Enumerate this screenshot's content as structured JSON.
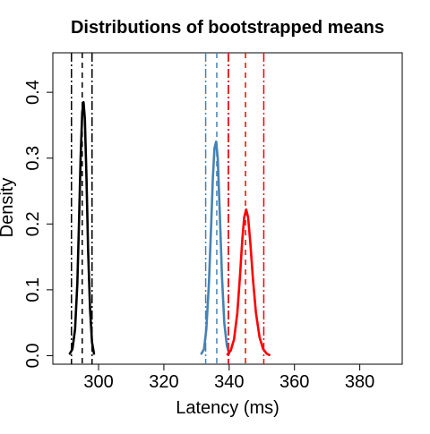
{
  "chart_data": {
    "type": "line",
    "title": "Distributions of bootstrapped means",
    "xlabel": "Latency (ms)",
    "ylabel": "Density",
    "xlim": [
      286,
      393
    ],
    "ylim": [
      -0.013,
      0.46
    ],
    "x_ticks": [
      300,
      320,
      340,
      360,
      380
    ],
    "y_ticks": [
      0.0,
      0.1,
      0.2,
      0.3,
      0.4
    ],
    "x_tick_labels": [
      "300",
      "320",
      "340",
      "360",
      "380"
    ],
    "y_tick_labels": [
      "0.0",
      "0.1",
      "0.2",
      "0.3",
      "0.4"
    ],
    "grid": false,
    "legend": "none",
    "series": [
      {
        "color": "#000000",
        "x": [
          291.2,
          292.0,
          292.8,
          293.5,
          294.0,
          294.5,
          295.0,
          295.4,
          295.8,
          296.3,
          296.8,
          297.4,
          298.0,
          298.6
        ],
        "y": [
          0.003,
          0.01,
          0.04,
          0.11,
          0.2,
          0.3,
          0.37,
          0.385,
          0.36,
          0.27,
          0.16,
          0.07,
          0.02,
          0.003
        ],
        "mean": 295.0,
        "ci": [
          291.7,
          298.0
        ]
      },
      {
        "color": "#4682B4",
        "x": [
          331.5,
          332.3,
          333.0,
          333.8,
          334.5,
          335.0,
          335.5,
          336.0,
          336.5,
          337.1,
          337.8,
          338.5,
          339.3,
          340.0
        ],
        "y": [
          0.003,
          0.01,
          0.04,
          0.11,
          0.2,
          0.27,
          0.315,
          0.325,
          0.3,
          0.22,
          0.12,
          0.05,
          0.015,
          0.003
        ],
        "mean": 336.2,
        "ci": [
          332.8,
          339.7
        ]
      },
      {
        "color": "#ff0000",
        "x": [
          339.5,
          340.5,
          341.5,
          342.5,
          343.3,
          344.0,
          344.6,
          345.2,
          345.8,
          346.5,
          347.3,
          348.2,
          349.3,
          350.4,
          351.5,
          352.3
        ],
        "y": [
          0.002,
          0.008,
          0.025,
          0.065,
          0.12,
          0.175,
          0.21,
          0.222,
          0.21,
          0.17,
          0.115,
          0.065,
          0.028,
          0.01,
          0.003,
          0.001
        ],
        "mean": 345.0,
        "ci": [
          339.8,
          350.6
        ]
      }
    ]
  }
}
